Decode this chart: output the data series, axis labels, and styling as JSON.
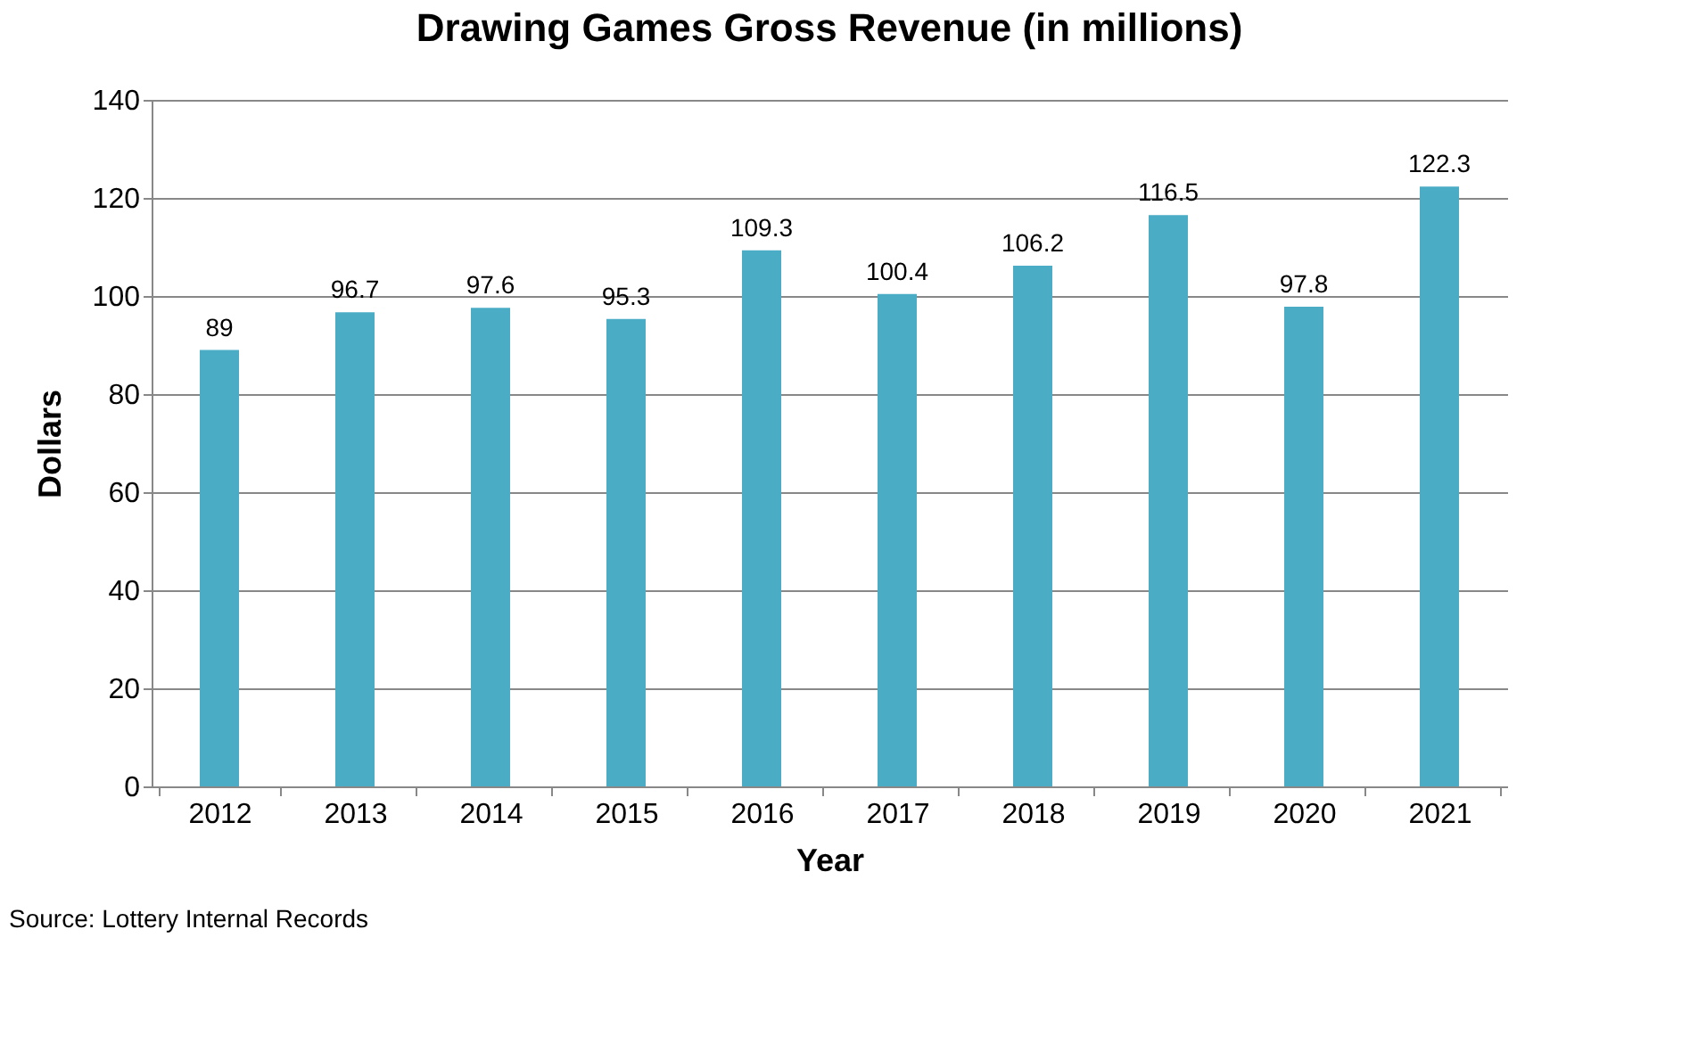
{
  "chart_data": {
    "type": "bar",
    "title": "Drawing  Games Gross Revenue (in millions)",
    "xlabel": "Year",
    "ylabel": "Dollars",
    "categories": [
      "2012",
      "2013",
      "2014",
      "2015",
      "2016",
      "2017",
      "2018",
      "2019",
      "2020",
      "2021"
    ],
    "values": [
      89,
      96.7,
      97.6,
      95.3,
      109.3,
      100.4,
      106.2,
      116.5,
      97.8,
      122.3
    ],
    "color": "#4bacc6",
    "ylim": [
      0,
      140
    ],
    "yticks": [
      0,
      20,
      40,
      60,
      80,
      100,
      120,
      140
    ],
    "grid": "y",
    "data_labels": true,
    "annotations": [
      "Source:  Lottery Internal Records"
    ]
  }
}
